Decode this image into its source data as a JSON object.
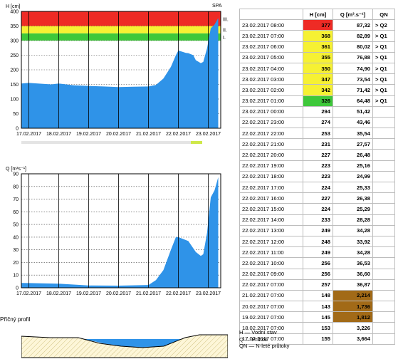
{
  "h_chart": {
    "axis_label": "H [cm]",
    "corner_label": "SPA",
    "y_ticks": [
      "400",
      "350",
      "300",
      "250",
      "200",
      "150",
      "100",
      "50",
      "0"
    ],
    "x_ticks": [
      "17.02.2017",
      "18.02.2017",
      "19.02.2017",
      "20.02.2017",
      "21.02.2017",
      "22.02.2017",
      "23.02.2017"
    ],
    "band_labels": [
      "III.",
      "II.",
      "I."
    ],
    "colors": {
      "fill": "#2f93e8",
      "band_red": "#ee2b25",
      "band_yellow": "#f6f133",
      "band_green": "#3ec83a"
    }
  },
  "q_chart": {
    "axis_label": "Q [m³s⁻¹]",
    "y_ticks": [
      "90",
      "80",
      "70",
      "60",
      "50",
      "40",
      "30",
      "20",
      "10",
      "0"
    ],
    "x_ticks": [
      "17.02.2017",
      "18.02.2017",
      "19.02.2017",
      "20.02.2017",
      "21.02.2017",
      "22.02.2017",
      "23.02.2017"
    ]
  },
  "chart_data": [
    {
      "type": "area",
      "title": "",
      "ylabel": "H [cm]",
      "ylim": [
        0,
        400
      ],
      "xlim": [
        "17.02.2017 00:00",
        "23.02.2017 08:00"
      ],
      "thresholds": [
        {
          "label": "I.",
          "from": 300,
          "to": 325
        },
        {
          "label": "II.",
          "from": 325,
          "to": 350
        },
        {
          "label": "III.",
          "from": 350,
          "to": 400
        }
      ],
      "series": [
        {
          "x": [
            "16.02.2017 18:00",
            "17.02.2017 00:00",
            "17.02.2017 18:00",
            "18.02.2017 00:00",
            "18.02.2017 12:00",
            "19.02.2017 00:00",
            "19.02.2017 12:00",
            "20.02.2017 00:00",
            "20.02.2017 12:00",
            "21.02.2017 00:00",
            "21.02.2017 06:00",
            "21.02.2017 12:00",
            "21.02.2017 18:00",
            "21.02.2017 22:00",
            "22.02.2017 00:00",
            "22.02.2017 06:00",
            "22.02.2017 08:00",
            "22.02.2017 12:00",
            "22.02.2017 14:00",
            "22.02.2017 18:00",
            "22.02.2017 20:00",
            "22.02.2017 23:00",
            "23.02.2017 02:00",
            "23.02.2017 05:00",
            "23.02.2017 08:00"
          ],
          "values": [
            153,
            155,
            150,
            153,
            147,
            145,
            143,
            141,
            142,
            143,
            148,
            170,
            210,
            250,
            266,
            258,
            257,
            250,
            233,
            223,
            227,
            274,
            342,
            355,
            377
          ]
        }
      ]
    },
    {
      "type": "area",
      "title": "",
      "ylabel": "Q [m³s⁻¹]",
      "ylim": [
        0,
        90
      ],
      "xlim": [
        "17.02.2017 00:00",
        "23.02.2017 08:00"
      ],
      "series": [
        {
          "x": [
            "16.02.2017 18:00",
            "17.02.2017 00:00",
            "18.02.2017 00:00",
            "19.02.2017 00:00",
            "20.02.2017 00:00",
            "21.02.2017 00:00",
            "21.02.2017 06:00",
            "21.02.2017 12:00",
            "21.02.2017 18:00",
            "21.02.2017 22:00",
            "22.02.2017 00:00",
            "22.02.2017 08:00",
            "22.02.2017 14:00",
            "22.02.2017 18:00",
            "22.02.2017 20:00",
            "22.02.2017 23:00",
            "23.02.2017 02:00",
            "23.02.2017 05:00",
            "23.02.2017 08:00"
          ],
          "values": [
            3.8,
            3.7,
            3.2,
            1.8,
            1.7,
            2.2,
            6,
            14,
            30,
            40,
            40,
            36.9,
            28.3,
            25.2,
            26.5,
            43.5,
            71.4,
            76.9,
            87.3
          ]
        }
      ]
    }
  ],
  "table": {
    "headers": {
      "date": "",
      "h": "H [cm]",
      "q": "Q [m³.s⁻¹]",
      "qn": "QN"
    },
    "rows": [
      {
        "date": "23.02.2017 08:00",
        "h": "377",
        "q": "87,32",
        "qn": "> Q2",
        "hc": "#ee2b25"
      },
      {
        "date": "23.02.2017 07:00",
        "h": "368",
        "q": "82,89",
        "qn": "> Q1",
        "hc": "#f6f133"
      },
      {
        "date": "23.02.2017 06:00",
        "h": "361",
        "q": "80,02",
        "qn": "> Q1",
        "hc": "#f6f133"
      },
      {
        "date": "23.02.2017 05:00",
        "h": "355",
        "q": "76,88",
        "qn": "> Q1",
        "hc": "#f6f133"
      },
      {
        "date": "23.02.2017 04:00",
        "h": "350",
        "q": "74,90",
        "qn": "> Q1",
        "hc": "#f6f133"
      },
      {
        "date": "23.02.2017 03:00",
        "h": "347",
        "q": "73,54",
        "qn": "> Q1",
        "hc": "#f6f133"
      },
      {
        "date": "23.02.2017 02:00",
        "h": "342",
        "q": "71,42",
        "qn": "> Q1",
        "hc": "#f6f133"
      },
      {
        "date": "23.02.2017 01:00",
        "h": "326",
        "q": "64,48",
        "qn": "> Q1",
        "hc": "#3ec83a"
      },
      {
        "date": "23.02.2017 00:00",
        "h": "294",
        "q": "51,42",
        "qn": ""
      },
      {
        "date": "22.02.2017 23:00",
        "h": "274",
        "q": "43,46",
        "qn": ""
      },
      {
        "date": "22.02.2017 22:00",
        "h": "253",
        "q": "35,54",
        "qn": ""
      },
      {
        "date": "22.02.2017 21:00",
        "h": "231",
        "q": "27,57",
        "qn": ""
      },
      {
        "date": "22.02.2017 20:00",
        "h": "227",
        "q": "26,48",
        "qn": ""
      },
      {
        "date": "22.02.2017 19:00",
        "h": "223",
        "q": "25,16",
        "qn": ""
      },
      {
        "date": "22.02.2017 18:00",
        "h": "223",
        "q": "24,99",
        "qn": ""
      },
      {
        "date": "22.02.2017 17:00",
        "h": "224",
        "q": "25,33",
        "qn": ""
      },
      {
        "date": "22.02.2017 16:00",
        "h": "227",
        "q": "26,38",
        "qn": ""
      },
      {
        "date": "22.02.2017 15:00",
        "h": "224",
        "q": "25,29",
        "qn": ""
      },
      {
        "date": "22.02.2017 14:00",
        "h": "233",
        "q": "28,28",
        "qn": ""
      },
      {
        "date": "22.02.2017 13:00",
        "h": "249",
        "q": "34,28",
        "qn": ""
      },
      {
        "date": "22.02.2017 12:00",
        "h": "248",
        "q": "33,92",
        "qn": ""
      },
      {
        "date": "22.02.2017 11:00",
        "h": "249",
        "q": "34,28",
        "qn": ""
      },
      {
        "date": "22.02.2017 10:00",
        "h": "256",
        "q": "36,53",
        "qn": ""
      },
      {
        "date": "22.02.2017 09:00",
        "h": "256",
        "q": "36,60",
        "qn": ""
      },
      {
        "date": "22.02.2017 07:00",
        "h": "257",
        "q": "36,87",
        "qn": ""
      },
      {
        "date": "21.02.2017 07:00",
        "h": "148",
        "q": "2,214",
        "qn": "",
        "qc": "#a26a17"
      },
      {
        "date": "20.02.2017 07:00",
        "h": "143",
        "q": "1,736",
        "qn": "",
        "qc": "#a26a17"
      },
      {
        "date": "19.02.2017 07:00",
        "h": "145",
        "q": "1,812",
        "qn": "",
        "qc": "#a26a17"
      },
      {
        "date": "18.02.2017 07:00",
        "h": "153",
        "q": "3,226",
        "qn": ""
      },
      {
        "date": "17.02.2017 07:00",
        "h": "155",
        "q": "3,664",
        "qn": ""
      }
    ]
  },
  "legend": {
    "h": "H — Vodní stav",
    "q": "Q — Průtok",
    "qn": "QN — N-leté průtoky"
  },
  "profile": {
    "title": "Příčný profil"
  }
}
